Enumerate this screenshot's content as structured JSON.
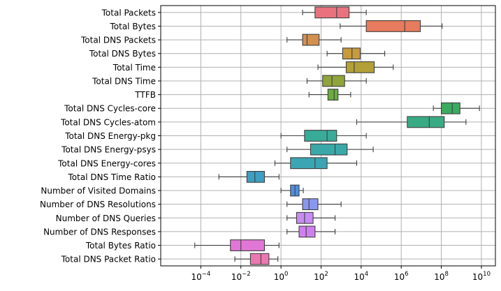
{
  "chart_data": {
    "type": "horizontal-boxplot",
    "title": "",
    "xlabel": "",
    "ylabel": "",
    "x_scale": "log10",
    "xlim": [
      1e-06,
      50000000000
    ],
    "x_ticks": [
      {
        "value": 0.0001,
        "base": "10",
        "exp": "−4"
      },
      {
        "value": 0.01,
        "base": "10",
        "exp": "−2"
      },
      {
        "value": 1,
        "base": "10",
        "exp": "0"
      },
      {
        "value": 100,
        "base": "10",
        "exp": "2"
      },
      {
        "value": 10000,
        "base": "10",
        "exp": "4"
      },
      {
        "value": 1000000,
        "base": "10",
        "exp": "6"
      },
      {
        "value": 100000000,
        "base": "10",
        "exp": "8"
      },
      {
        "value": 10000000000,
        "base": "10",
        "exp": "10"
      }
    ],
    "grid": true,
    "legend": "none",
    "categories": [
      {
        "label": "Total Packets",
        "color": "#e8737f",
        "whislo": 12,
        "q1": 50,
        "median": 600,
        "q3": 2500,
        "whishi": 18000
      },
      {
        "label": "Total Bytes",
        "color": "#e77b5d",
        "whislo": 900,
        "q1": 18000,
        "median": 1500000,
        "q3": 9000000,
        "whishi": 110000000
      },
      {
        "label": "Total DNS Packets",
        "color": "#d39050",
        "whislo": 2,
        "q1": 12,
        "median": 20,
        "q3": 80,
        "whishi": 1000
      },
      {
        "label": "Total DNS Bytes",
        "color": "#c79a3c",
        "whislo": 200,
        "q1": 1200,
        "median": 3500,
        "q3": 9000,
        "whishi": 150000
      },
      {
        "label": "Total Time",
        "color": "#b3a036",
        "whislo": 70,
        "q1": 1800,
        "median": 4500,
        "q3": 45000,
        "whishi": 400000
      },
      {
        "label": "Total DNS Time",
        "color": "#8fa43a",
        "whislo": 20,
        "q1": 120,
        "median": 350,
        "q3": 1500,
        "whishi": 18000
      },
      {
        "label": "TTFB",
        "color": "#6aad3e",
        "whislo": 25,
        "q1": 220,
        "median": 450,
        "q3": 700,
        "whishi": 3000
      },
      {
        "label": "Total DNS Cycles-core",
        "color": "#3aab5f",
        "whislo": 40000000,
        "q1": 100000000,
        "median": 350000000,
        "q3": 850000000,
        "whishi": 8000000000
      },
      {
        "label": "Total DNS Cycles-atom",
        "color": "#39ab84",
        "whislo": 6000,
        "q1": 2000000,
        "median": 25000000,
        "q3": 140000000,
        "whishi": 1700000000
      },
      {
        "label": "Total DNS Energy-pkg",
        "color": "#38ab99",
        "whislo": 1,
        "q1": 15,
        "median": 200,
        "q3": 600,
        "whishi": 18000
      },
      {
        "label": "Total DNS Energy-psys",
        "color": "#39a8a9",
        "whislo": 2,
        "q1": 30,
        "median": 500,
        "q3": 2000,
        "whishi": 40000
      },
      {
        "label": "Total DNS Energy-cores",
        "color": "#3ba5b3",
        "whislo": 0.5,
        "q1": 3,
        "median": 50,
        "q3": 200,
        "whishi": 6000
      },
      {
        "label": "Total DNS Time Ratio",
        "color": "#3d9fc2",
        "whislo": 0.0008,
        "q1": 0.02,
        "median": 0.05,
        "q3": 0.15,
        "whishi": 0.8
      },
      {
        "label": "Number of Visited Domains",
        "color": "#4f8fe0",
        "whislo": 1,
        "q1": 3,
        "median": 5,
        "q3": 8,
        "whishi": 13
      },
      {
        "label": "Number of DNS Resolutions",
        "color": "#8a97f0",
        "whislo": 2,
        "q1": 12,
        "median": 25,
        "q3": 70,
        "whishi": 1000
      },
      {
        "label": "Number of DNS Queries",
        "color": "#c88cf2",
        "whislo": 2,
        "q1": 6,
        "median": 15,
        "q3": 40,
        "whishi": 500
      },
      {
        "label": "Number of DNS Responses",
        "color": "#cf80ee",
        "whislo": 2,
        "q1": 8,
        "median": 18,
        "q3": 50,
        "whishi": 500
      },
      {
        "label": "Total Bytes Ratio",
        "color": "#e077d6",
        "whislo": 5e-05,
        "q1": 0.003,
        "median": 0.01,
        "q3": 0.15,
        "whishi": 0.8
      },
      {
        "label": "Total DNS Packet Ratio",
        "color": "#ec78b2",
        "whislo": 0.005,
        "q1": 0.03,
        "median": 0.1,
        "q3": 0.25,
        "whishi": 0.7
      }
    ]
  }
}
